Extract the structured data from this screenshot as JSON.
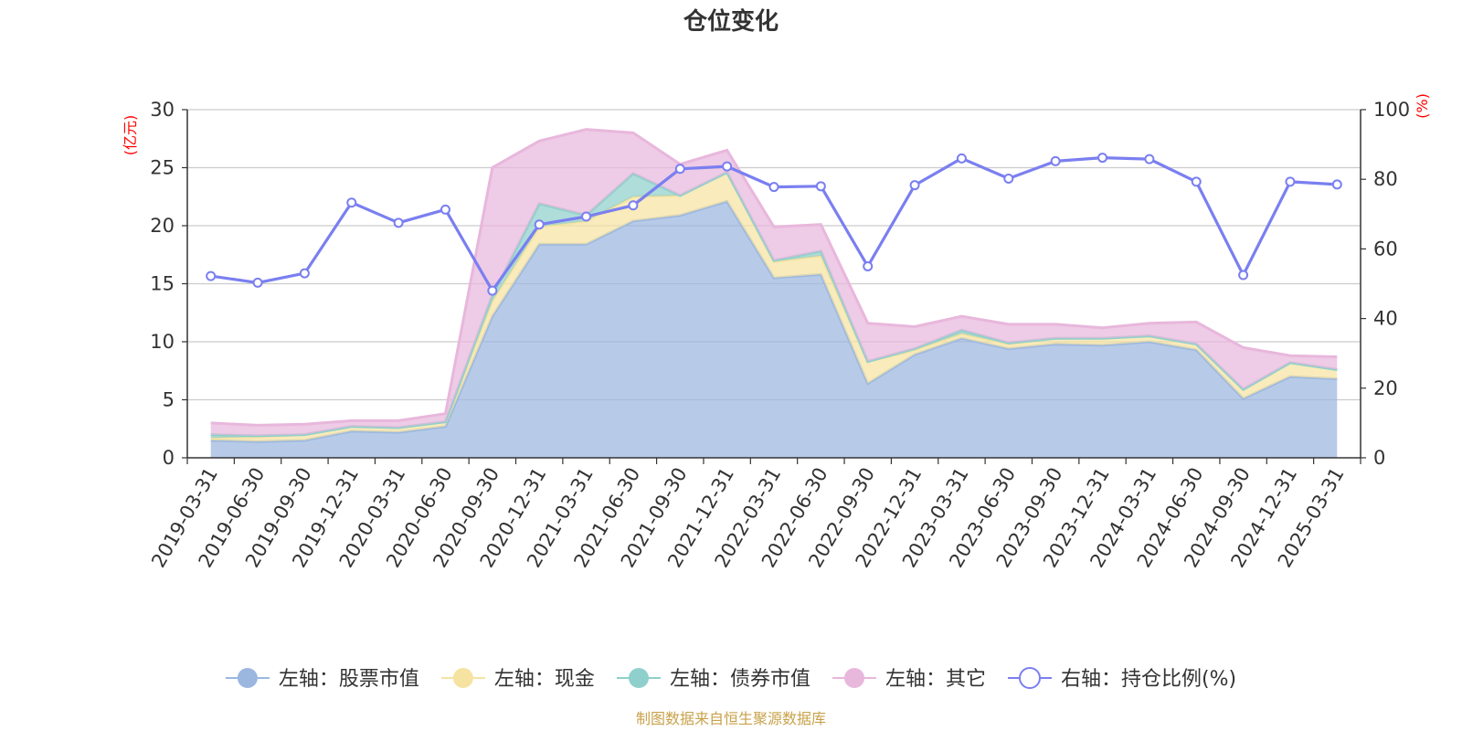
{
  "chart_data": {
    "type": "area",
    "title": "仓位变化",
    "left_axis_unit": "(亿元)",
    "right_axis_unit": "(%)",
    "left_ylim": [
      0,
      30
    ],
    "left_yticks": [
      0,
      5,
      10,
      15,
      20,
      25,
      30
    ],
    "right_ylim": [
      0,
      100
    ],
    "right_yticks": [
      0,
      20,
      40,
      60,
      80,
      100
    ],
    "grid": true,
    "legend_position": "bottom",
    "categories": [
      "2019-03-31",
      "2019-06-30",
      "2019-09-30",
      "2019-12-31",
      "2020-03-31",
      "2020-06-30",
      "2020-09-30",
      "2020-12-31",
      "2021-03-31",
      "2021-06-30",
      "2021-09-30",
      "2021-12-31",
      "2022-03-31",
      "2022-06-30",
      "2022-09-30",
      "2022-12-31",
      "2023-03-31",
      "2023-06-30",
      "2023-09-30",
      "2023-12-31",
      "2024-03-31",
      "2024-06-30",
      "2024-09-30",
      "2024-12-31",
      "2025-03-31"
    ],
    "series": [
      {
        "name": "左轴：股票市值",
        "axis": "left",
        "stack": true,
        "color": "#9bb7e0",
        "values": [
          1.5,
          1.4,
          1.5,
          2.3,
          2.2,
          2.7,
          12.2,
          18.4,
          18.4,
          20.4,
          20.9,
          22.1,
          15.5,
          15.8,
          6.4,
          8.9,
          10.3,
          9.4,
          9.8,
          9.7,
          10.0,
          9.3,
          5.1,
          7.0,
          6.8
        ]
      },
      {
        "name": "左轴：现金",
        "axis": "left",
        "stack": true,
        "color": "#f6e3a1",
        "values": [
          0.2,
          0.4,
          0.5,
          0.4,
          0.4,
          0.4,
          1.3,
          1.5,
          2.0,
          2.1,
          1.7,
          2.5,
          1.4,
          1.6,
          1.9,
          0.4,
          0.4,
          0.4,
          0.5,
          0.6,
          0.5,
          0.5,
          0.8,
          1.2,
          0.8
        ]
      },
      {
        "name": "左轴：债券市值",
        "axis": "left",
        "stack": true,
        "color": "#8fd0cc",
        "values": [
          0.3,
          0.1,
          0.0,
          0.0,
          0.0,
          0.0,
          0.5,
          2.0,
          0.5,
          2.0,
          0.0,
          0.0,
          0.1,
          0.4,
          0.0,
          0.1,
          0.3,
          0.1,
          0.0,
          0.0,
          0.0,
          0.0,
          0.0,
          0.0,
          0.0
        ]
      },
      {
        "name": "左轴：其它",
        "axis": "left",
        "stack": true,
        "color": "#e8b7dc",
        "values": [
          1.0,
          0.9,
          0.9,
          0.5,
          0.6,
          0.7,
          11.0,
          5.4,
          7.4,
          3.5,
          2.7,
          1.9,
          2.9,
          2.3,
          3.3,
          1.9,
          1.2,
          1.6,
          1.2,
          0.9,
          1.1,
          1.9,
          3.6,
          0.6,
          1.1
        ]
      },
      {
        "name": "右轴：持仓比例(%)",
        "axis": "right",
        "type": "line",
        "color": "#7a7ff0",
        "values": [
          52.2,
          50.3,
          53.0,
          73.3,
          67.5,
          71.3,
          48.0,
          67.0,
          69.3,
          72.5,
          83.0,
          83.7,
          77.8,
          78.0,
          55.0,
          78.3,
          86.0,
          80.2,
          85.2,
          86.2,
          85.8,
          79.3,
          52.5,
          79.3,
          78.5
        ]
      }
    ]
  },
  "legend": [
    {
      "label": "左轴：股票市值",
      "marker": "filled-circle",
      "color": "#9bb7e0"
    },
    {
      "label": "左轴：现金",
      "marker": "filled-circle",
      "color": "#f6e3a1"
    },
    {
      "label": "左轴：债券市值",
      "marker": "filled-circle",
      "color": "#8fd0cc"
    },
    {
      "label": "左轴：其它",
      "marker": "filled-circle",
      "color": "#e8b7dc"
    },
    {
      "label": "右轴：持仓比例(%)",
      "marker": "hollow-circle",
      "color": "#7a7ff0"
    }
  ],
  "source_text": "制图数据来自恒生聚源数据库"
}
